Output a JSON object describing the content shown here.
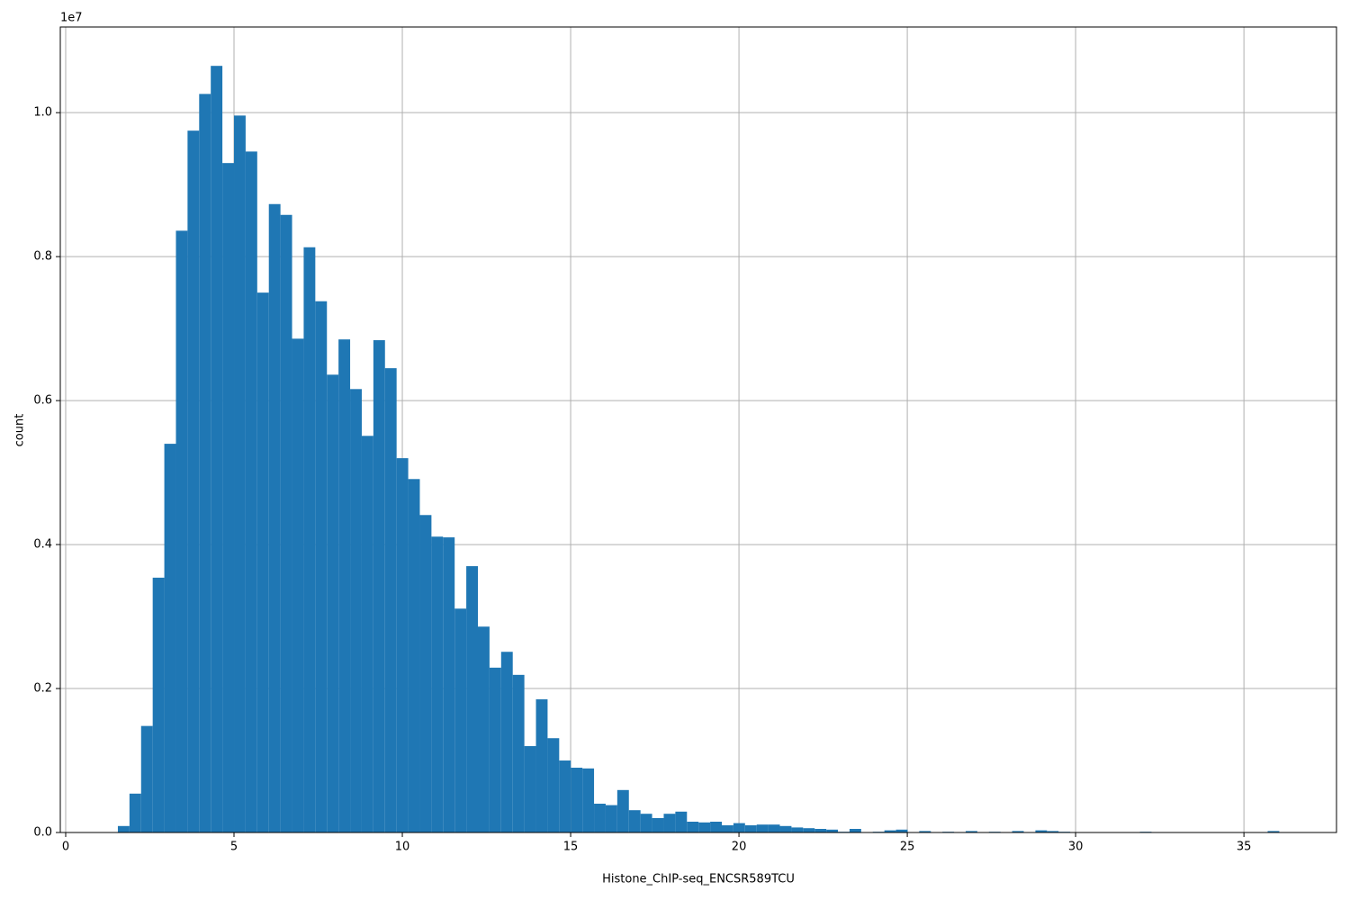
{
  "chart_data": {
    "type": "histogram",
    "x_label": "Histone_ChIP-seq_ENCSR589TCU",
    "y_label": "count",
    "y_offset_label": "1e7",
    "color": "#1f77b4",
    "grid": true,
    "bins": [
      1.55,
      1.895,
      2.24,
      2.585,
      2.93,
      3.275,
      3.62,
      3.965,
      4.31,
      4.655,
      5.0,
      5.345,
      5.69,
      6.035,
      6.38,
      6.725,
      7.07,
      7.415,
      7.76,
      8.105,
      8.45,
      8.795,
      9.14,
      9.485,
      9.83,
      10.175,
      10.52,
      10.865,
      11.21,
      11.555,
      11.9,
      12.245,
      12.59,
      12.935,
      13.28,
      13.625,
      13.97,
      14.315,
      14.66,
      15.005,
      15.35,
      15.695,
      16.04,
      16.385,
      16.73,
      17.075,
      17.42,
      17.765,
      18.11,
      18.455,
      18.8,
      19.145,
      19.49,
      19.835,
      20.18,
      20.525,
      20.87,
      21.215,
      21.56,
      21.905,
      22.25,
      22.595,
      22.94,
      23.285,
      23.63,
      23.975,
      24.32,
      24.665,
      25.01,
      25.355,
      25.7,
      26.045,
      26.39,
      26.735,
      27.08,
      27.425,
      27.77,
      28.115,
      28.46,
      28.805,
      29.15,
      29.495,
      29.84,
      30.185,
      30.53,
      30.875,
      31.22,
      31.565,
      31.91,
      32.255,
      32.6,
      32.945,
      33.29,
      33.635,
      33.98,
      34.325,
      34.67,
      35.015,
      35.36,
      35.705,
      36.05
    ],
    "values": [
      90000,
      540000,
      1480000,
      3540000,
      5400000,
      8360000,
      9750000,
      10260000,
      10650000,
      9300000,
      9960000,
      9460000,
      7500000,
      8730000,
      8580000,
      6860000,
      8130000,
      7380000,
      6360000,
      6850000,
      6160000,
      5510000,
      6840000,
      6450000,
      5200000,
      4910000,
      4410000,
      4110000,
      4100000,
      3110000,
      3700000,
      2860000,
      2290000,
      2510000,
      2190000,
      1200000,
      1850000,
      1310000,
      1000000,
      900000,
      890000,
      400000,
      380000,
      590000,
      310000,
      260000,
      200000,
      260000,
      290000,
      150000,
      140000,
      150000,
      100000,
      130000,
      100000,
      110000,
      110000,
      90000,
      70000,
      60000,
      50000,
      40000,
      10000,
      50000,
      0,
      10000,
      30000,
      40000,
      0,
      20000,
      0,
      10000,
      0,
      20000,
      0,
      10000,
      0,
      20000,
      0,
      30000,
      20000,
      10000,
      0,
      0,
      0,
      0,
      0,
      0,
      10000,
      0,
      0,
      0,
      0,
      0,
      0,
      0,
      0,
      0,
      0,
      20000
    ],
    "xlim": [
      -0.16,
      37.75
    ],
    "xticks": [
      0,
      5,
      10,
      15,
      20,
      25,
      30,
      35
    ],
    "ylim": [
      0,
      11190000
    ],
    "yticks": [
      {
        "value": 0,
        "label": "0.0"
      },
      {
        "value": 2000000,
        "label": "0.2"
      },
      {
        "value": 4000000,
        "label": "0.4"
      },
      {
        "value": 6000000,
        "label": "0.6"
      },
      {
        "value": 8000000,
        "label": "0.8"
      },
      {
        "value": 10000000,
        "label": "1.0"
      }
    ]
  }
}
